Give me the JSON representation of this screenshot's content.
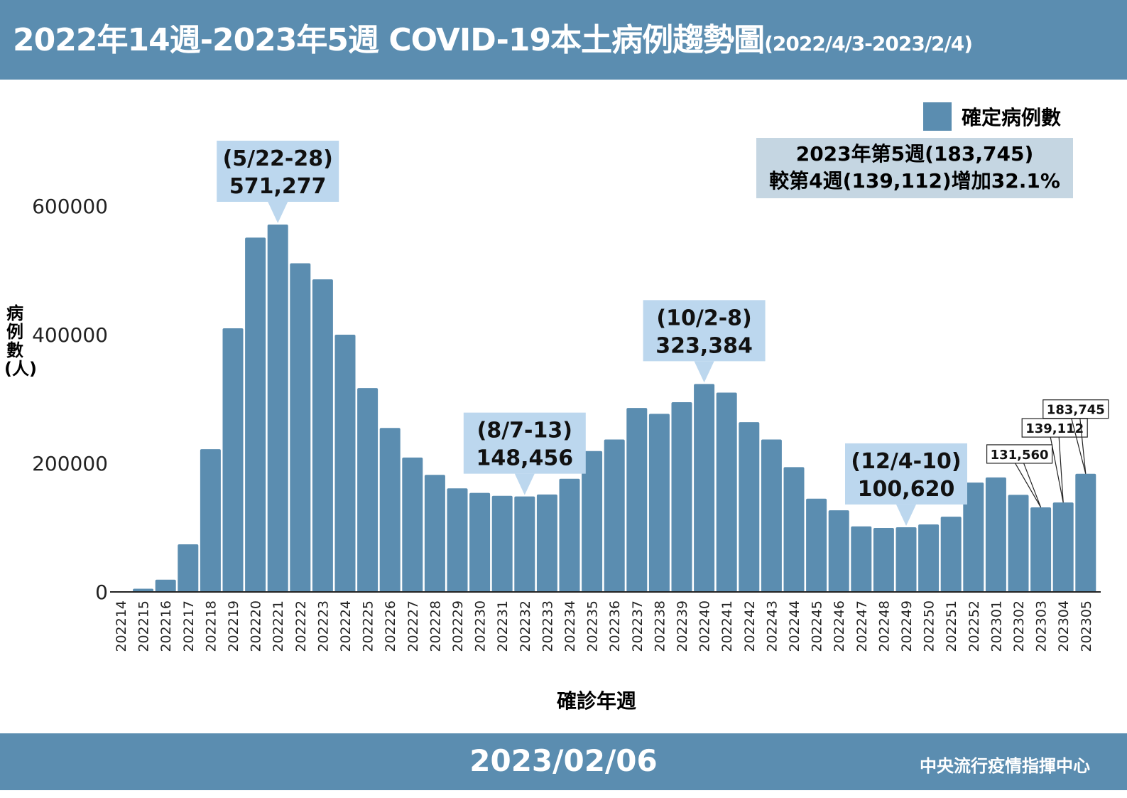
{
  "header": {
    "title": "2022年14週-2023年5週 COVID-19本土病例趨勢圖",
    "date_range": "(2022/4/3-2023/2/4)"
  },
  "footer": {
    "date": "2023/02/06",
    "org": "中央流行疫情指揮中心"
  },
  "note": {
    "line1": "2023年第5週(183,745)",
    "line2": "較第4週(139,112)增加32.1%"
  },
  "colors": {
    "bar": "#5b8db0",
    "callout": "#bcd7ee",
    "header": "#5b8db0"
  },
  "chart_data": {
    "type": "bar",
    "xlabel": "確診年週",
    "ylabel": "病例數(人)",
    "legend": "確定病例數",
    "legend_position": "top-right",
    "ylim": [
      0,
      700000
    ],
    "yticks": [
      0,
      200000,
      400000,
      600000
    ],
    "grid": false,
    "categories": [
      "202214",
      "202215",
      "202216",
      "202217",
      "202218",
      "202219",
      "202220",
      "202221",
      "202222",
      "202223",
      "202224",
      "202225",
      "202226",
      "202227",
      "202228",
      "202229",
      "202230",
      "202231",
      "202232",
      "202233",
      "202234",
      "202235",
      "202236",
      "202237",
      "202238",
      "202239",
      "202240",
      "202241",
      "202242",
      "202243",
      "202244",
      "202245",
      "202246",
      "202247",
      "202248",
      "202249",
      "202250",
      "202251",
      "202252",
      "202301",
      "202302",
      "202303",
      "202304",
      "202305"
    ],
    "values": [
      300,
      5000,
      19000,
      74000,
      222000,
      410000,
      551000,
      571277,
      511000,
      486000,
      400000,
      317000,
      255000,
      209000,
      182000,
      161000,
      154000,
      149500,
      148456,
      151500,
      176000,
      219000,
      237000,
      286000,
      277000,
      295000,
      323384,
      310000,
      264000,
      237000,
      194000,
      145000,
      127000,
      102000,
      99500,
      100620,
      105000,
      117000,
      170000,
      178000,
      151000,
      131560,
      139112,
      183745
    ],
    "callouts": [
      {
        "category": "202221",
        "line1": "(5/22-28)",
        "line2": "571,277"
      },
      {
        "category": "202232",
        "line1": "(8/7-13)",
        "line2": "148,456"
      },
      {
        "category": "202240",
        "line1": "(10/2-8)",
        "line2": "323,384"
      },
      {
        "category": "202249",
        "line1": "(12/4-10)",
        "line2": "100,620"
      }
    ],
    "labels": [
      {
        "category": "202303",
        "text": "131,560"
      },
      {
        "category": "202304",
        "text": "139,112"
      },
      {
        "category": "202305",
        "text": "183,745"
      }
    ]
  }
}
